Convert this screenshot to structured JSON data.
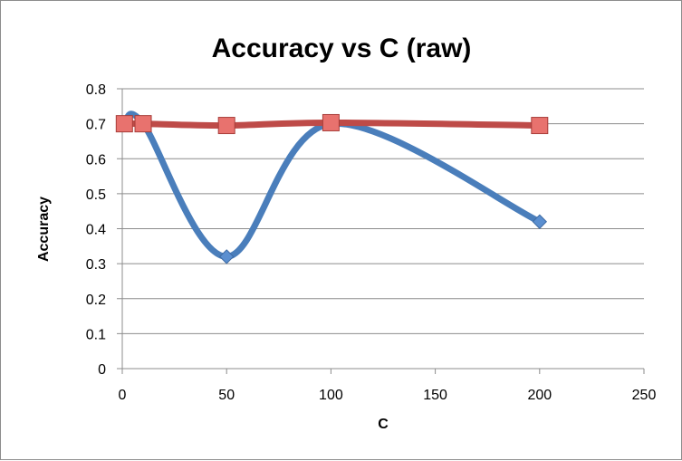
{
  "chart_data": {
    "type": "line",
    "title": "Accuracy vs C (raw)",
    "xlabel": "C",
    "ylabel": "Accuracy",
    "xlim": [
      0,
      250
    ],
    "ylim": [
      0,
      0.8
    ],
    "xticks": [
      0,
      50,
      100,
      150,
      200,
      250
    ],
    "yticks": [
      0,
      0.1,
      0.2,
      0.3,
      0.4,
      0.5,
      0.6,
      0.7,
      0.8
    ],
    "grid": "horizontal",
    "legend": "none",
    "smooth": true,
    "series": [
      {
        "x": [
          1,
          10,
          50,
          100,
          200
        ],
        "y": [
          0.7,
          0.7,
          0.32,
          0.7,
          0.42
        ],
        "color": "#4a7ebb",
        "marker": "diamond"
      },
      {
        "x": [
          1,
          10,
          50,
          100,
          200
        ],
        "y": [
          0.7,
          0.7,
          0.695,
          0.703,
          0.695
        ],
        "color": "#be4b48",
        "marker": "square"
      }
    ]
  }
}
